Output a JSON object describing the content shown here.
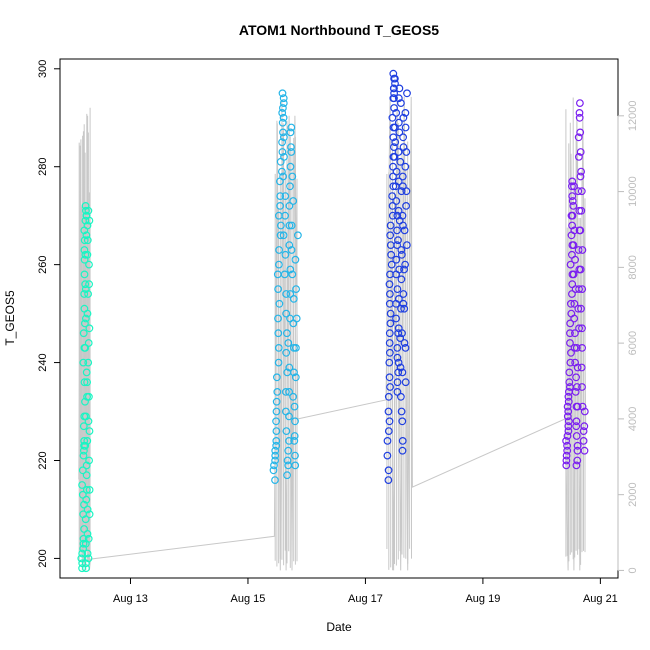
{
  "chart_data": {
    "type": "scatter",
    "title": "ATOM1 Northbound T_GEOS5",
    "xlabel": "Date",
    "ylabel": "T_GEOS5",
    "x_ticks": [
      "Aug 13",
      "Aug 15",
      "Aug 17",
      "Aug 19",
      "Aug 21"
    ],
    "x_tick_days": [
      13,
      15,
      17,
      19,
      21
    ],
    "xlim_days": [
      11.8,
      21.3
    ],
    "ylim": [
      196,
      302
    ],
    "y_ticks": [
      200,
      220,
      240,
      260,
      280,
      300
    ],
    "y2_ticks": [
      0,
      2000,
      4000,
      6000,
      8000,
      10000,
      12000
    ],
    "y2lim": [
      -200,
      13500
    ],
    "y2_color": "#bdbdbd",
    "grid": false,
    "legend": "none",
    "series": [
      {
        "color": "#19f5c3",
        "x_range_days": [
          12.18,
          12.3
        ],
        "y_points": [
          198,
          199,
          200,
          201,
          202,
          203,
          204,
          206,
          209,
          211,
          213,
          215,
          218,
          221,
          222,
          223,
          224,
          227,
          229,
          232,
          236,
          240,
          243,
          246,
          248,
          251,
          254,
          256,
          258,
          261,
          263,
          265,
          267,
          269,
          270,
          271,
          272,
          270,
          266,
          262,
          255,
          249,
          243,
          236,
          229,
          223,
          217,
          212,
          208,
          203,
          199,
          198,
          201,
          205,
          210,
          214,
          219,
          224,
          228,
          233,
          238,
          244,
          250,
          256,
          262,
          268,
          271,
          269,
          265,
          260,
          254,
          247,
          240,
          233,
          226,
          220,
          214,
          209,
          204,
          200
        ]
      },
      {
        "color": "#25b5e8",
        "x_range_days": [
          15.45,
          15.83
        ],
        "y_points": [
          216,
          218,
          219,
          220,
          221,
          222,
          223,
          224,
          226,
          228,
          230,
          232,
          234,
          237,
          240,
          243,
          246,
          249,
          252,
          255,
          258,
          260,
          263,
          266,
          268,
          270,
          272,
          274,
          277,
          279,
          281,
          283,
          285,
          287,
          289,
          291,
          292,
          294,
          295,
          293,
          290,
          286,
          282,
          278,
          274,
          270,
          266,
          262,
          258,
          254,
          250,
          246,
          242,
          238,
          234,
          230,
          226,
          222,
          219,
          217,
          220,
          224,
          229,
          234,
          239,
          244,
          249,
          254,
          259,
          264,
          268,
          272,
          276,
          280,
          284,
          288,
          287,
          283,
          278,
          273,
          268,
          263,
          258,
          253,
          248,
          243,
          238,
          233,
          228,
          224,
          221,
          219,
          225,
          231,
          237,
          243,
          249,
          255,
          261,
          266
        ]
      },
      {
        "color": "#1f3fe0",
        "x_range_days": [
          17.38,
          17.7
        ],
        "y_points": [
          216,
          218,
          221,
          224,
          226,
          228,
          230,
          233,
          235,
          237,
          240,
          242,
          244,
          246,
          248,
          250,
          252,
          254,
          256,
          258,
          260,
          262,
          264,
          266,
          268,
          270,
          272,
          274,
          276,
          278,
          280,
          282,
          284,
          286,
          288,
          290,
          292,
          294,
          295,
          296,
          297,
          298,
          299,
          298,
          296,
          294,
          291,
          288,
          285,
          282,
          279,
          276,
          273,
          270,
          267,
          264,
          261,
          258,
          255,
          252,
          249,
          246,
          243,
          240,
          238,
          236,
          234,
          241,
          247,
          253,
          259,
          265,
          271,
          277,
          283,
          289,
          294,
          296,
          293,
          287,
          281,
          275,
          269,
          263,
          257,
          251,
          245,
          239,
          233,
          228,
          224,
          222,
          230,
          238,
          246,
          254,
          262,
          270,
          278,
          286,
          290,
          284,
          276,
          268,
          260,
          252,
          244,
          236,
          243,
          251,
          259,
          267,
          275,
          283,
          291,
          295,
          288,
          280,
          272,
          264
        ]
      },
      {
        "color": "#7a1ff0",
        "x_range_days": [
          20.42,
          20.72
        ],
        "y_points": [
          219,
          220,
          221,
          222,
          223,
          224,
          225,
          226,
          227,
          228,
          229,
          230,
          231,
          232,
          233,
          234,
          235,
          236,
          238,
          240,
          242,
          244,
          246,
          248,
          250,
          252,
          254,
          256,
          258,
          260,
          262,
          264,
          266,
          268,
          270,
          272,
          274,
          276,
          277,
          276,
          273,
          270,
          267,
          264,
          261,
          258,
          255,
          252,
          249,
          246,
          243,
          240,
          237,
          234,
          231,
          228,
          225,
          222,
          220,
          219,
          223,
          227,
          231,
          235,
          239,
          243,
          247,
          251,
          255,
          259,
          263,
          267,
          271,
          275,
          278,
          282,
          286,
          290,
          293,
          291,
          287,
          283,
          279,
          275,
          271,
          267,
          263,
          259,
          255,
          251,
          247,
          243,
          239,
          235,
          231,
          227,
          224,
          222,
          226,
          230
        ]
      }
    ],
    "altitude_line": {
      "color": "#c8c8c8",
      "description_points": [
        {
          "x_day": 12.12,
          "y2": 2400
        },
        {
          "x_day": 12.15,
          "y2": 10500
        },
        {
          "x_day": 12.18,
          "y2": 0
        },
        {
          "x_day": 12.21,
          "y2": 11600
        },
        {
          "x_day": 12.24,
          "y2": 0
        },
        {
          "x_day": 12.27,
          "y2": 12000
        },
        {
          "x_day": 12.3,
          "y2": 0
        },
        {
          "x_day": 12.32,
          "y2": 300
        },
        {
          "x_day": 15.45,
          "y2": 900
        },
        {
          "x_day": 15.5,
          "y2": 11800
        },
        {
          "x_day": 15.55,
          "y2": 0
        },
        {
          "x_day": 15.6,
          "y2": 11800
        },
        {
          "x_day": 15.65,
          "y2": 0
        },
        {
          "x_day": 15.7,
          "y2": 12000
        },
        {
          "x_day": 15.75,
          "y2": 0
        },
        {
          "x_day": 15.8,
          "y2": 12000
        },
        {
          "x_day": 15.85,
          "y2": 4000
        },
        {
          "x_day": 17.35,
          "y2": 4500
        },
        {
          "x_day": 17.42,
          "y2": 12500
        },
        {
          "x_day": 17.48,
          "y2": 0
        },
        {
          "x_day": 17.54,
          "y2": 12500
        },
        {
          "x_day": 17.6,
          "y2": 0
        },
        {
          "x_day": 17.66,
          "y2": 12500
        },
        {
          "x_day": 17.72,
          "y2": 0
        },
        {
          "x_day": 17.78,
          "y2": 12500
        },
        {
          "x_day": 17.8,
          "y2": 2200
        },
        {
          "x_day": 20.4,
          "y2": 4000
        },
        {
          "x_day": 20.45,
          "y2": 0
        },
        {
          "x_day": 20.5,
          "y2": 11000
        },
        {
          "x_day": 20.55,
          "y2": 0
        },
        {
          "x_day": 20.6,
          "y2": 12000
        },
        {
          "x_day": 20.65,
          "y2": 0
        },
        {
          "x_day": 20.7,
          "y2": 12000
        },
        {
          "x_day": 20.75,
          "y2": 3800
        }
      ]
    }
  }
}
